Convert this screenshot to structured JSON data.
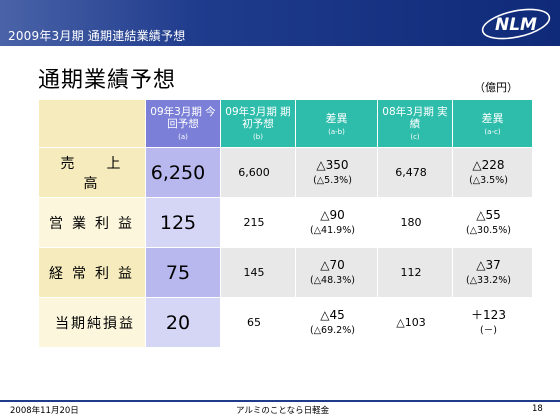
{
  "header": {
    "title": "2009年3月期 通期連結業績予想",
    "logo_text": "NLM"
  },
  "slide": {
    "title": "通期業績予想",
    "unit_note": "（億円）"
  },
  "table": {
    "columns": [
      {
        "main": "09年3月期 今回予想",
        "sub": "(a)"
      },
      {
        "main": "09年3月期 期初予想",
        "sub": "(b)"
      },
      {
        "main": "差異",
        "sub": "(a-b)"
      },
      {
        "main": "08年3月期 実績",
        "sub": "(c)"
      },
      {
        "main": "差異",
        "sub": "(a-c)"
      }
    ],
    "rows": [
      {
        "label": "売　上　高",
        "current": "6,250",
        "initial": "6,600",
        "diff_ab": "△350",
        "diff_ab_pct": "(△5.3%)",
        "actual": "6,478",
        "diff_ac": "△228",
        "diff_ac_pct": "(△3.5%)"
      },
      {
        "label": "営業利益",
        "current": "125",
        "initial": "215",
        "diff_ab": "△90",
        "diff_ab_pct": "(△41.9%)",
        "actual": "180",
        "diff_ac": "△55",
        "diff_ac_pct": "(△30.5%)"
      },
      {
        "label": "経常利益",
        "current": "75",
        "initial": "145",
        "diff_ab": "△70",
        "diff_ab_pct": "(△48.3%)",
        "actual": "112",
        "diff_ac": "△37",
        "diff_ac_pct": "(△33.2%)"
      },
      {
        "label": "当期純損益",
        "current": "20",
        "initial": "65",
        "diff_ab": "△45",
        "diff_ab_pct": "(△69.2%)",
        "actual": "△103",
        "diff_ac": "＋123",
        "diff_ac_pct": "(－)"
      }
    ]
  },
  "footer": {
    "date": "2008年11月20日",
    "company": "アルミのことなら日軽金",
    "page": "18"
  },
  "colors": {
    "header_blue": "#1f3b8c",
    "current_col": "#7b7fd8",
    "teal_col": "#2ebdab",
    "label_col": "#f5ebbd"
  }
}
